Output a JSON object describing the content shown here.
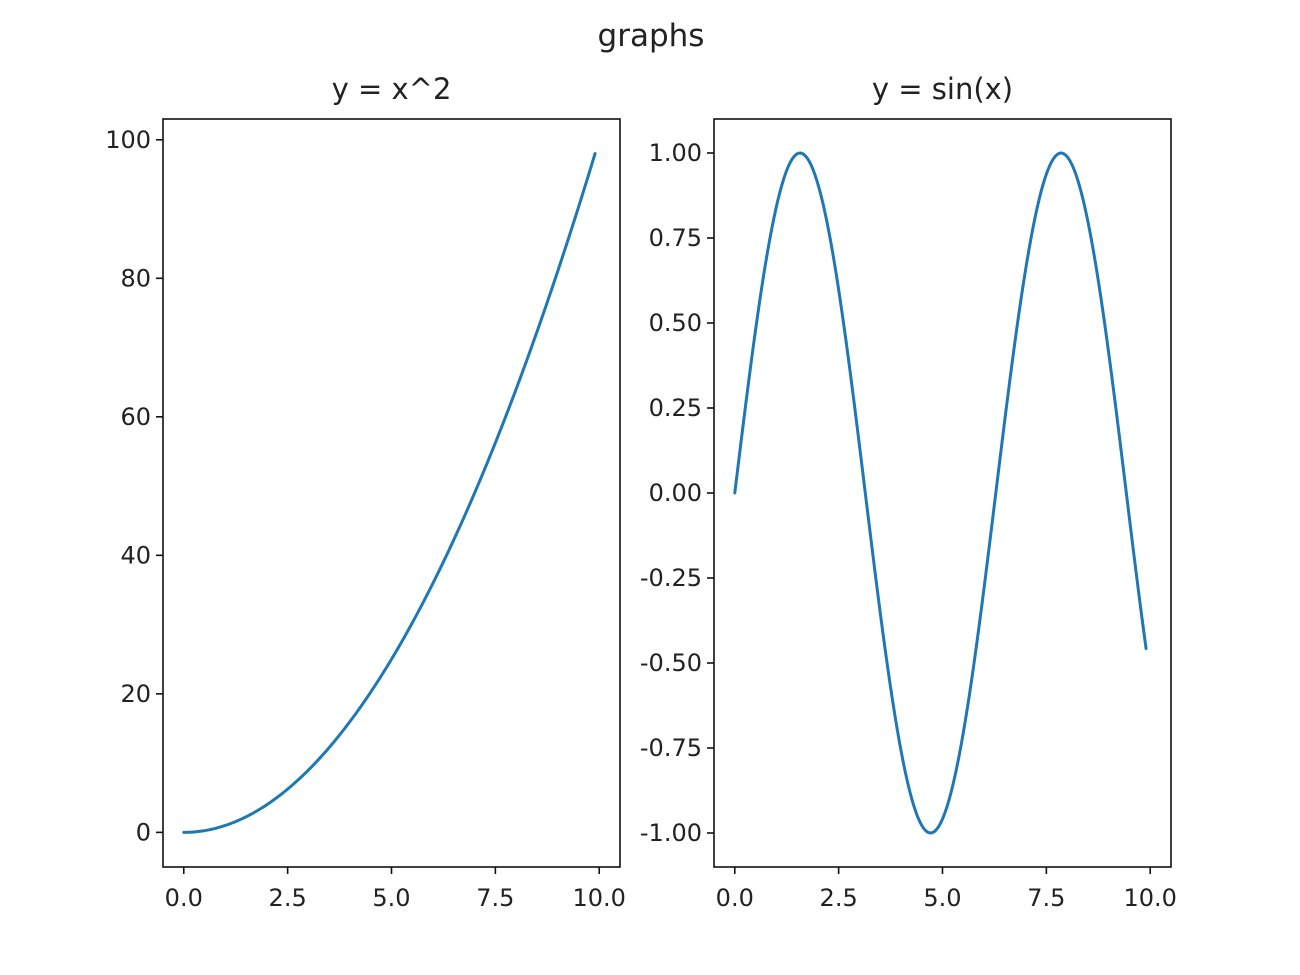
{
  "figure": {
    "suptitle": "graphs"
  },
  "chart_data": [
    {
      "type": "line",
      "title": "y = x^2",
      "xlabel": "",
      "ylabel": "",
      "function": "x^2",
      "x": [
        0.0,
        0.5,
        1.0,
        1.5,
        2.0,
        2.5,
        3.0,
        3.5,
        4.0,
        4.5,
        5.0,
        5.5,
        6.0,
        6.5,
        7.0,
        7.5,
        8.0,
        8.5,
        9.0,
        9.5,
        9.9
      ],
      "series": [
        {
          "values": [
            0.0,
            0.25,
            1.0,
            2.25,
            4.0,
            6.25,
            9.0,
            12.25,
            16.0,
            20.25,
            25.0,
            30.25,
            36.0,
            42.25,
            49.0,
            56.25,
            64.0,
            72.25,
            81.0,
            90.25,
            98.01
          ]
        }
      ],
      "xlim": [
        -0.5,
        10.5
      ],
      "ylim": [
        -5,
        103
      ],
      "xticks": [
        0,
        2.5,
        5,
        7.5,
        10
      ],
      "xtick_labels": [
        "0.0",
        "2.5",
        "5.0",
        "7.5",
        "10.0"
      ],
      "yticks": [
        0,
        20,
        40,
        60,
        80,
        100
      ],
      "ytick_labels": [
        "0",
        "20",
        "40",
        "60",
        "80",
        "100"
      ],
      "grid": false,
      "color": "#1f77b4"
    },
    {
      "type": "line",
      "title": "y = sin(x)",
      "xlabel": "",
      "ylabel": "",
      "function": "sin(x)",
      "x": [
        0.0,
        0.5,
        1.0,
        1.5,
        2.0,
        2.5,
        3.0,
        3.5,
        4.0,
        4.5,
        5.0,
        5.5,
        6.0,
        6.5,
        7.0,
        7.5,
        8.0,
        8.5,
        9.0,
        9.5,
        9.9
      ],
      "series": [
        {
          "values": [
            0.0,
            0.479,
            0.841,
            0.997,
            0.909,
            0.598,
            0.141,
            -0.351,
            -0.757,
            -0.978,
            -0.959,
            -0.706,
            -0.279,
            0.215,
            0.657,
            0.938,
            0.989,
            0.798,
            0.412,
            -0.075,
            -0.458
          ]
        }
      ],
      "xlim": [
        -0.5,
        10.5
      ],
      "ylim": [
        -1.1,
        1.1
      ],
      "xticks": [
        0,
        2.5,
        5,
        7.5,
        10
      ],
      "xtick_labels": [
        "0.0",
        "2.5",
        "5.0",
        "7.5",
        "10.0"
      ],
      "yticks": [
        -1.0,
        -0.75,
        -0.5,
        -0.25,
        0.0,
        0.25,
        0.5,
        0.75,
        1.0
      ],
      "ytick_labels": [
        "-1.00",
        "-0.75",
        "-0.50",
        "-0.25",
        "0.00",
        "0.25",
        "0.50",
        "0.75",
        "1.00"
      ],
      "grid": false,
      "color": "#1f77b4"
    }
  ]
}
